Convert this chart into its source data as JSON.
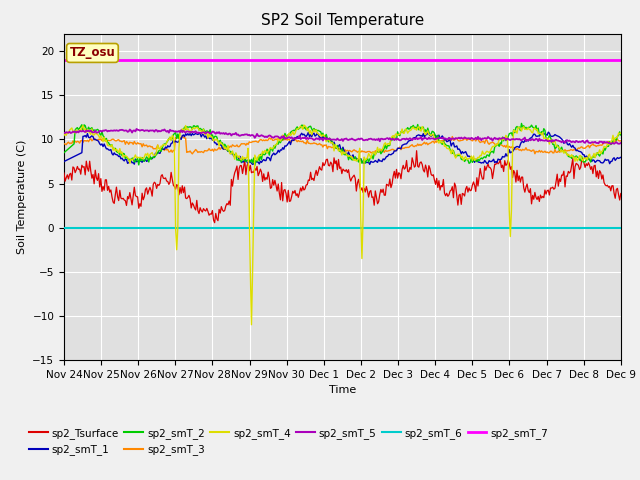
{
  "title": "SP2 Soil Temperature",
  "xlabel": "Time",
  "ylabel": "Soil Temperature (C)",
  "ylim": [
    -15,
    22
  ],
  "yticks": [
    -15,
    -10,
    -5,
    0,
    5,
    10,
    15,
    20
  ],
  "plot_bg_color": "#e0e0e0",
  "fig_bg_color": "#f0f0f0",
  "annotation_text": "TZ_osu",
  "annotation_color": "#8b0000",
  "annotation_bg": "#ffffc0",
  "annotation_border": "#b8a000",
  "series_colors": {
    "sp2_Tsurface": "#dd0000",
    "sp2_smT_1": "#0000bb",
    "sp2_smT_2": "#00cc00",
    "sp2_smT_3": "#ff8800",
    "sp2_smT_4": "#dddd00",
    "sp2_smT_5": "#aa00bb",
    "sp2_smT_6": "#00cccc",
    "sp2_smT_7": "#ff00ff"
  },
  "smT6_value": -0.05,
  "smT7_value": 19.0,
  "n_points": 500,
  "x_tick_labels": [
    "Nov 24",
    "Nov 25",
    "Nov 26",
    "Nov 27",
    "Nov 28",
    "Nov 29",
    "Nov 30",
    "Dec 1",
    "Dec 2",
    "Dec 3",
    "Dec 4",
    "Dec 5",
    "Dec 6",
    "Dec 7",
    "Dec 8",
    "Dec 9"
  ],
  "x_tick_positions": [
    0,
    1,
    2,
    3,
    4,
    5,
    6,
    7,
    8,
    9,
    10,
    11,
    12,
    13,
    14,
    15
  ]
}
